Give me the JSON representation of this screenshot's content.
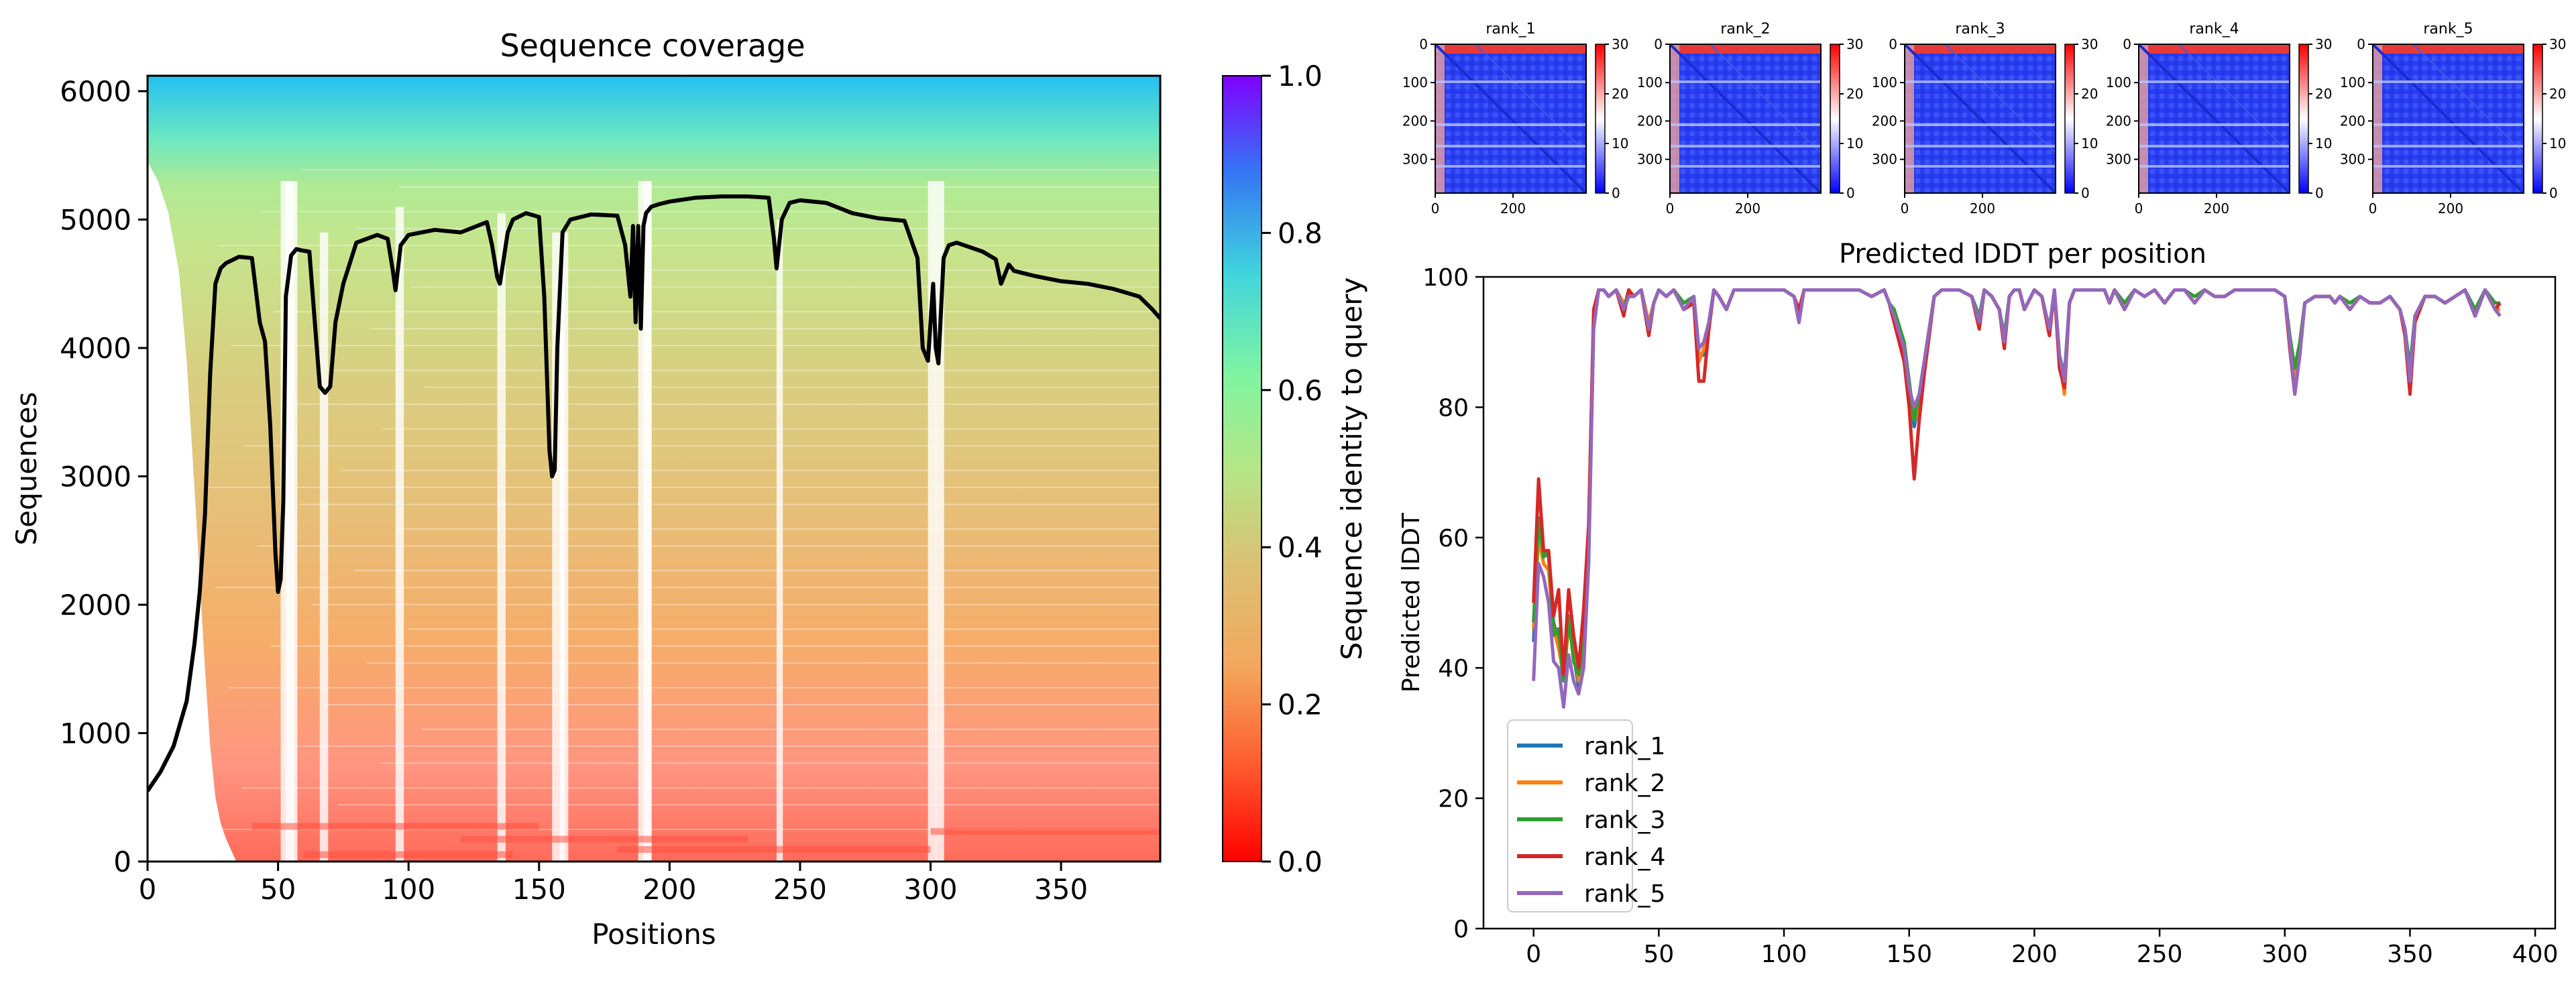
{
  "chart_data": [
    {
      "type": "heatmap",
      "title": "Sequence coverage",
      "xlabel": "Positions",
      "ylabel": "Sequences",
      "xlim": [
        0,
        388
      ],
      "ylim": [
        0,
        6120
      ],
      "xticks": [
        "0",
        "50",
        "100",
        "150",
        "200",
        "250",
        "300",
        "350"
      ],
      "yticks": [
        "0",
        "1000",
        "2000",
        "3000",
        "4000",
        "5000",
        "6000"
      ],
      "colorbar": {
        "label": "Sequence identity to query",
        "ticks": [
          "0.0",
          "0.2",
          "0.4",
          "0.6",
          "0.8",
          "1.0"
        ],
        "range": [
          0,
          1
        ],
        "colormap": "rainbow_r"
      },
      "coverage_line": {
        "color": "#000000",
        "x": [
          0,
          5,
          10,
          15,
          18,
          20,
          22,
          24,
          26,
          28,
          30,
          35,
          40,
          43,
          45,
          47,
          49,
          50,
          51,
          52,
          53,
          55,
          57,
          59,
          62,
          66,
          68,
          70,
          72,
          75,
          80,
          88,
          92,
          94,
          95,
          97,
          100,
          110,
          120,
          130,
          132,
          134,
          135,
          138,
          140,
          145,
          150,
          152,
          154,
          155,
          156,
          157,
          159,
          162,
          170,
          180,
          183,
          185,
          186,
          187,
          188,
          189,
          190,
          191,
          193,
          196,
          200,
          210,
          220,
          230,
          238,
          240,
          241,
          243,
          246,
          250,
          260,
          270,
          280,
          290,
          295,
          297,
          299,
          301,
          302,
          303,
          305,
          307,
          310,
          320,
          325,
          327,
          330,
          332,
          340,
          350,
          360,
          370,
          380,
          385,
          388
        ],
        "y": [
          550,
          700,
          900,
          1250,
          1700,
          2100,
          2700,
          3800,
          4500,
          4620,
          4660,
          4710,
          4700,
          4200,
          4050,
          3400,
          2400,
          2100,
          2200,
          2800,
          4400,
          4720,
          4770,
          4760,
          4750,
          3700,
          3650,
          3700,
          4200,
          4500,
          4820,
          4880,
          4850,
          4600,
          4450,
          4800,
          4880,
          4920,
          4900,
          4980,
          4800,
          4550,
          4500,
          4900,
          5000,
          5050,
          5020,
          4400,
          3200,
          3000,
          3050,
          4000,
          4900,
          5000,
          5040,
          5030,
          4800,
          4400,
          4950,
          4200,
          4950,
          4150,
          4950,
          5050,
          5100,
          5120,
          5140,
          5170,
          5180,
          5180,
          5170,
          4850,
          4620,
          5000,
          5130,
          5150,
          5130,
          5050,
          5010,
          4990,
          4700,
          4000,
          3900,
          4500,
          4000,
          3880,
          4700,
          4800,
          4820,
          4750,
          4690,
          4500,
          4650,
          4600,
          4560,
          4520,
          4500,
          4460,
          4400,
          4300,
          4230
        ]
      }
    },
    {
      "type": "heatmap",
      "panels": [
        {
          "title": "rank_1"
        },
        {
          "title": "rank_2"
        },
        {
          "title": "rank_3"
        },
        {
          "title": "rank_4"
        },
        {
          "title": "rank_5"
        }
      ],
      "xticks": [
        "0",
        "200"
      ],
      "yticks": [
        "0",
        "100",
        "200",
        "300"
      ],
      "colorbar_ticks": [
        "0",
        "10",
        "20",
        "30"
      ],
      "colorbar_range": [
        0,
        30
      ],
      "colormap": "bwr"
    },
    {
      "type": "line",
      "title": "Predicted lDDT per position",
      "xlabel": "",
      "ylabel": "Predicted lDDT",
      "xlim": [
        -20,
        408
      ],
      "ylim": [
        0,
        100
      ],
      "xticks": [
        "0",
        "50",
        "100",
        "150",
        "200",
        "250",
        "300",
        "350",
        "400"
      ],
      "yticks": [
        "0",
        "20",
        "40",
        "60",
        "80",
        "100"
      ],
      "legend_position": "lower-left",
      "x": [
        0,
        2,
        4,
        6,
        8,
        10,
        12,
        14,
        16,
        18,
        20,
        22,
        24,
        26,
        28,
        30,
        33,
        36,
        38,
        40,
        43,
        46,
        48,
        50,
        53,
        56,
        60,
        64,
        66,
        68,
        70,
        72,
        74,
        77,
        80,
        85,
        90,
        95,
        100,
        104,
        106,
        108,
        112,
        120,
        130,
        135,
        140,
        142,
        144,
        148,
        150,
        152,
        154,
        156,
        158,
        160,
        163,
        166,
        170,
        175,
        178,
        180,
        183,
        186,
        188,
        190,
        192,
        194,
        196,
        200,
        203,
        206,
        208,
        210,
        212,
        214,
        216,
        220,
        228,
        230,
        232,
        236,
        240,
        244,
        248,
        252,
        256,
        260,
        264,
        268,
        272,
        276,
        280,
        286,
        290,
        296,
        300,
        302,
        304,
        306,
        308,
        312,
        318,
        320,
        322,
        326,
        330,
        334,
        338,
        342,
        346,
        348,
        350,
        352,
        356,
        360,
        364,
        368,
        372,
        376,
        380,
        384,
        386
      ],
      "series": [
        {
          "name": "rank_1",
          "color": "#1f77b4",
          "values": [
            44,
            62,
            58,
            57,
            47,
            44,
            38,
            47,
            42,
            37,
            42,
            60,
            94,
            98,
            98,
            97,
            98,
            95,
            98,
            97,
            98,
            92,
            96,
            98,
            97,
            98,
            95,
            97,
            88,
            88,
            93,
            98,
            97,
            95,
            98,
            98,
            98,
            98,
            98,
            97,
            94,
            98,
            98,
            98,
            98,
            97,
            98,
            96,
            94,
            89,
            83,
            77,
            81,
            86,
            92,
            97,
            98,
            98,
            98,
            97,
            93,
            98,
            97,
            95,
            90,
            97,
            98,
            98,
            95,
            98,
            97,
            92,
            98,
            88,
            84,
            96,
            98,
            98,
            98,
            96,
            98,
            95,
            98,
            97,
            98,
            96,
            98,
            98,
            96,
            98,
            97,
            97,
            98,
            98,
            98,
            98,
            97,
            91,
            85,
            89,
            96,
            97,
            97,
            96,
            97,
            95,
            97,
            96,
            96,
            97,
            95,
            92,
            86,
            94,
            97,
            97,
            96,
            97,
            98,
            94,
            98,
            95,
            96
          ]
        },
        {
          "name": "rank_2",
          "color": "#ff7f0e",
          "values": [
            46,
            60,
            56,
            55,
            46,
            43,
            39,
            46,
            43,
            38,
            43,
            58,
            93,
            98,
            98,
            97,
            98,
            96,
            97,
            97,
            98,
            93,
            96,
            98,
            97,
            98,
            95,
            97,
            87,
            89,
            92,
            98,
            97,
            95,
            98,
            98,
            98,
            98,
            98,
            97,
            94,
            98,
            98,
            98,
            98,
            97,
            98,
            96,
            94,
            88,
            82,
            78,
            80,
            87,
            92,
            97,
            98,
            98,
            98,
            97,
            93,
            98,
            97,
            95,
            90,
            97,
            98,
            98,
            95,
            98,
            97,
            91,
            98,
            87,
            82,
            96,
            98,
            98,
            98,
            96,
            98,
            95,
            98,
            97,
            98,
            96,
            98,
            98,
            96,
            98,
            97,
            97,
            98,
            98,
            98,
            98,
            97,
            90,
            84,
            89,
            96,
            97,
            97,
            96,
            97,
            95,
            97,
            96,
            96,
            97,
            95,
            92,
            84,
            94,
            97,
            97,
            96,
            97,
            98,
            94,
            98,
            95,
            95
          ]
        },
        {
          "name": "rank_3",
          "color": "#2ca02c",
          "values": [
            47,
            63,
            57,
            58,
            45,
            46,
            38,
            48,
            41,
            39,
            44,
            61,
            94,
            98,
            98,
            97,
            98,
            95,
            98,
            97,
            98,
            92,
            96,
            98,
            97,
            98,
            96,
            97,
            89,
            90,
            93,
            98,
            97,
            95,
            98,
            98,
            98,
            98,
            98,
            97,
            94,
            98,
            98,
            98,
            98,
            97,
            98,
            96,
            95,
            90,
            84,
            78,
            82,
            87,
            92,
            97,
            98,
            98,
            98,
            97,
            94,
            98,
            97,
            95,
            91,
            97,
            98,
            98,
            95,
            98,
            97,
            92,
            98,
            88,
            85,
            96,
            98,
            98,
            98,
            96,
            98,
            96,
            98,
            97,
            98,
            96,
            98,
            98,
            97,
            98,
            97,
            97,
            98,
            98,
            98,
            98,
            97,
            91,
            86,
            90,
            96,
            97,
            97,
            96,
            97,
            96,
            97,
            96,
            96,
            97,
            95,
            92,
            86,
            94,
            97,
            97,
            96,
            97,
            98,
            95,
            98,
            96,
            96
          ]
        },
        {
          "name": "rank_4",
          "color": "#d62728",
          "values": [
            50,
            69,
            58,
            58,
            48,
            52,
            39,
            52,
            45,
            40,
            49,
            62,
            95,
            98,
            98,
            97,
            98,
            94,
            98,
            97,
            98,
            91,
            96,
            98,
            97,
            98,
            95,
            96,
            84,
            84,
            92,
            98,
            97,
            95,
            98,
            98,
            98,
            98,
            98,
            97,
            95,
            98,
            98,
            98,
            98,
            97,
            98,
            96,
            93,
            87,
            80,
            69,
            78,
            85,
            91,
            97,
            98,
            98,
            98,
            97,
            92,
            98,
            97,
            95,
            89,
            97,
            98,
            98,
            95,
            98,
            97,
            91,
            98,
            86,
            83,
            96,
            98,
            98,
            98,
            96,
            98,
            95,
            98,
            97,
            98,
            96,
            98,
            98,
            96,
            98,
            97,
            97,
            98,
            98,
            98,
            98,
            97,
            89,
            82,
            88,
            96,
            97,
            97,
            96,
            97,
            95,
            97,
            96,
            96,
            97,
            95,
            91,
            82,
            93,
            97,
            97,
            96,
            97,
            98,
            94,
            98,
            95,
            96
          ]
        },
        {
          "name": "rank_5",
          "color": "#9467bd",
          "values": [
            38,
            56,
            54,
            50,
            41,
            40,
            34,
            42,
            38,
            36,
            40,
            56,
            92,
            98,
            98,
            97,
            98,
            95,
            97,
            97,
            98,
            92,
            96,
            98,
            97,
            98,
            95,
            97,
            89,
            90,
            93,
            98,
            97,
            95,
            98,
            98,
            98,
            98,
            98,
            97,
            93,
            98,
            98,
            98,
            98,
            97,
            98,
            96,
            94,
            89,
            83,
            80,
            82,
            87,
            92,
            97,
            98,
            98,
            98,
            97,
            93,
            98,
            97,
            95,
            90,
            97,
            98,
            98,
            95,
            98,
            97,
            92,
            98,
            88,
            84,
            96,
            98,
            98,
            98,
            96,
            98,
            95,
            98,
            97,
            98,
            96,
            98,
            98,
            96,
            98,
            97,
            97,
            98,
            98,
            98,
            98,
            97,
            90,
            82,
            88,
            96,
            97,
            97,
            96,
            97,
            95,
            97,
            96,
            96,
            97,
            95,
            92,
            84,
            94,
            97,
            97,
            96,
            97,
            98,
            94,
            98,
            95,
            94
          ]
        }
      ]
    }
  ]
}
